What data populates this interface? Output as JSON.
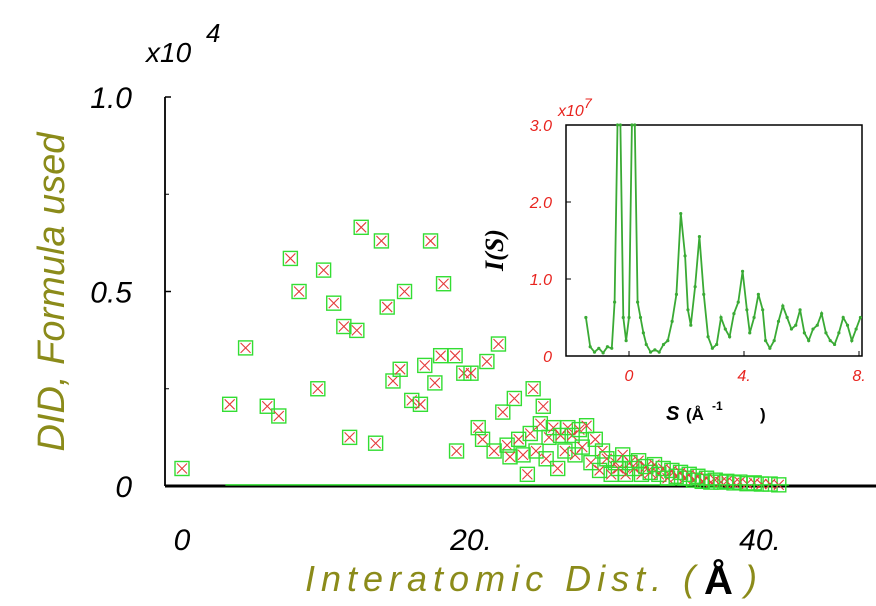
{
  "chart_data": [
    {
      "type": "scatter",
      "ylabel": "DID, Formula used",
      "xlabel_text": "Interatomic Dist. (",
      "xlabel_unit": "Å",
      "xlabel_close": ")",
      "y_multiplier": "x10",
      "y_multiplier_exp": "4",
      "xlim": [
        -1,
        48
      ],
      "ylim": [
        0,
        1.0
      ],
      "x_ticks": [
        {
          "value": 0,
          "label": "0"
        },
        {
          "value": 20,
          "label": "20."
        },
        {
          "value": 40,
          "label": "40."
        }
      ],
      "y_ticks": [
        {
          "value": 0,
          "label": "0"
        },
        {
          "value": 0.5,
          "label": "0.5"
        },
        {
          "value": 1.0,
          "label": "1.0"
        }
      ],
      "grid": false,
      "colors": {
        "marker_box": "#33dd33",
        "marker_x": "#e43b3b",
        "axis_label": "#8b8b1a"
      },
      "series": [
        {
          "points": [
            [
              0.0,
              0.045
            ],
            [
              3.3,
              0.21
            ],
            [
              4.4,
              0.355
            ],
            [
              5.9,
              0.205
            ],
            [
              6.7,
              0.18
            ],
            [
              7.5,
              0.585
            ],
            [
              8.1,
              0.5
            ],
            [
              9.4,
              0.25
            ],
            [
              9.8,
              0.555
            ],
            [
              10.5,
              0.47
            ],
            [
              11.2,
              0.41
            ],
            [
              11.6,
              0.125
            ],
            [
              12.1,
              0.4
            ],
            [
              12.4,
              0.665
            ],
            [
              13.4,
              0.11
            ],
            [
              13.8,
              0.63
            ],
            [
              14.2,
              0.46
            ],
            [
              14.6,
              0.27
            ],
            [
              15.1,
              0.3
            ],
            [
              15.4,
              0.5
            ],
            [
              15.9,
              0.22
            ],
            [
              16.5,
              0.21
            ],
            [
              16.8,
              0.31
            ],
            [
              17.2,
              0.63
            ],
            [
              17.5,
              0.265
            ],
            [
              17.9,
              0.335
            ],
            [
              18.1,
              0.52
            ],
            [
              18.9,
              0.335
            ],
            [
              19.0,
              0.09
            ],
            [
              19.5,
              0.29
            ],
            [
              20.0,
              0.29
            ],
            [
              20.5,
              0.15
            ],
            [
              20.8,
              0.12
            ],
            [
              21.1,
              0.32
            ],
            [
              21.6,
              0.09
            ],
            [
              21.9,
              0.365
            ],
            [
              22.2,
              0.19
            ],
            [
              22.5,
              0.105
            ],
            [
              22.7,
              0.075
            ],
            [
              23.0,
              0.225
            ],
            [
              23.3,
              0.12
            ],
            [
              23.6,
              0.08
            ],
            [
              23.9,
              0.03
            ],
            [
              24.1,
              0.135
            ],
            [
              24.3,
              0.25
            ],
            [
              24.5,
              0.09
            ],
            [
              24.8,
              0.16
            ],
            [
              25.0,
              0.205
            ],
            [
              25.2,
              0.07
            ],
            [
              25.4,
              0.125
            ],
            [
              25.7,
              0.15
            ],
            [
              26.0,
              0.045
            ],
            [
              26.2,
              0.13
            ],
            [
              26.5,
              0.09
            ],
            [
              26.7,
              0.15
            ],
            [
              27.0,
              0.13
            ],
            [
              27.2,
              0.08
            ],
            [
              27.5,
              0.145
            ],
            [
              27.7,
              0.1
            ],
            [
              28.0,
              0.155
            ],
            [
              28.3,
              0.06
            ],
            [
              28.6,
              0.12
            ],
            [
              28.9,
              0.04
            ],
            [
              29.1,
              0.09
            ],
            [
              29.4,
              0.07
            ],
            [
              29.7,
              0.03
            ],
            [
              30.0,
              0.06
            ],
            [
              30.2,
              0.045
            ],
            [
              30.5,
              0.08
            ],
            [
              30.7,
              0.03
            ],
            [
              31.0,
              0.06
            ],
            [
              31.3,
              0.045
            ],
            [
              31.6,
              0.065
            ],
            [
              31.8,
              0.03
            ],
            [
              32.1,
              0.05
            ],
            [
              32.4,
              0.035
            ],
            [
              32.7,
              0.055
            ],
            [
              33.0,
              0.03
            ],
            [
              33.3,
              0.045
            ],
            [
              33.6,
              0.02
            ],
            [
              33.9,
              0.04
            ],
            [
              34.2,
              0.025
            ],
            [
              34.5,
              0.035
            ],
            [
              34.8,
              0.02
            ],
            [
              35.1,
              0.03
            ],
            [
              35.4,
              0.015
            ],
            [
              35.7,
              0.025
            ],
            [
              36.0,
              0.012
            ],
            [
              36.3,
              0.02
            ],
            [
              36.6,
              0.01
            ],
            [
              36.9,
              0.015
            ],
            [
              37.3,
              0.01
            ],
            [
              37.7,
              0.012
            ],
            [
              38.2,
              0.008
            ],
            [
              38.6,
              0.01
            ],
            [
              39.1,
              0.006
            ],
            [
              39.6,
              0.008
            ],
            [
              40.1,
              0.005
            ],
            [
              40.7,
              0.005
            ],
            [
              41.3,
              0.003
            ]
          ]
        }
      ]
    },
    {
      "type": "line",
      "inset": true,
      "ylabel": "I(S)",
      "xlabel_main": "S",
      "xlabel_unit": "(Å",
      "xlabel_unit_exp": "-1",
      "xlabel_close": ")",
      "y_multiplier": "x10",
      "y_multiplier_exp": "7",
      "xlim": [
        -1.6,
        8.2
      ],
      "ylim": [
        0,
        3.0
      ],
      "x_ticks": [
        {
          "value": 0,
          "label": "0"
        },
        {
          "value": 4,
          "label": "4."
        },
        {
          "value": 8,
          "label": "8."
        }
      ],
      "y_ticks": [
        {
          "value": 0,
          "label": "0"
        },
        {
          "value": 1.0,
          "label": "1.0"
        },
        {
          "value": 2.0,
          "label": "2.0"
        },
        {
          "value": 3.0,
          "label": "3.0"
        }
      ],
      "grid": false,
      "colors": {
        "line": "#3aaa35",
        "tick_labels": "#e8231e"
      },
      "series": [
        {
          "x": [
            -1.5,
            -1.35,
            -1.2,
            -1.05,
            -0.9,
            -0.75,
            -0.6,
            -0.5,
            -0.4,
            -0.3,
            -0.2,
            -0.1,
            0.0,
            0.1,
            0.2,
            0.3,
            0.4,
            0.5,
            0.6,
            0.75,
            0.9,
            1.05,
            1.2,
            1.35,
            1.5,
            1.65,
            1.8,
            1.95,
            2.05,
            2.15,
            2.3,
            2.45,
            2.6,
            2.75,
            2.9,
            3.05,
            3.2,
            3.35,
            3.5,
            3.65,
            3.8,
            3.95,
            4.1,
            4.2,
            4.35,
            4.5,
            4.65,
            4.75,
            4.9,
            5.05,
            5.2,
            5.35,
            5.5,
            5.65,
            5.8,
            5.95,
            6.1,
            6.25,
            6.4,
            6.55,
            6.7,
            6.85,
            7.0,
            7.15,
            7.3,
            7.45,
            7.6,
            7.75,
            7.9,
            8.05
          ],
          "y": [
            0.5,
            0.12,
            0.05,
            0.1,
            0.04,
            0.12,
            0.1,
            0.7,
            3.0,
            3.0,
            0.5,
            0.2,
            0.5,
            3.0,
            3.0,
            0.7,
            0.5,
            0.3,
            0.15,
            0.05,
            0.08,
            0.05,
            0.15,
            0.2,
            0.45,
            0.8,
            1.85,
            1.3,
            0.6,
            0.4,
            0.9,
            1.55,
            0.8,
            0.25,
            0.1,
            0.15,
            0.5,
            0.35,
            0.25,
            0.55,
            0.7,
            1.1,
            0.6,
            0.3,
            0.5,
            0.8,
            0.6,
            0.2,
            0.1,
            0.2,
            0.45,
            0.65,
            0.5,
            0.35,
            0.4,
            0.6,
            0.3,
            0.2,
            0.35,
            0.4,
            0.55,
            0.3,
            0.2,
            0.15,
            0.3,
            0.5,
            0.4,
            0.2,
            0.35,
            0.5
          ]
        }
      ]
    }
  ]
}
